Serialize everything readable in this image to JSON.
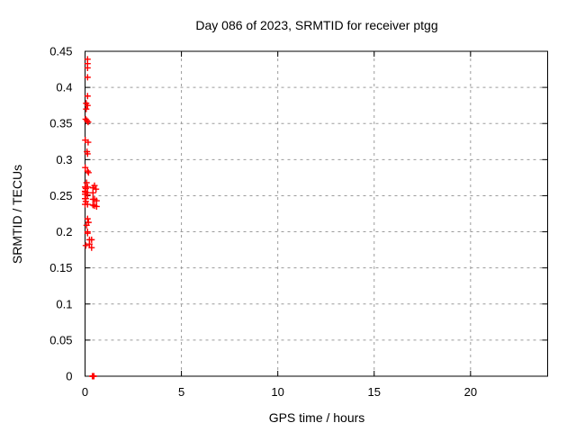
{
  "page": {
    "background": "#ffffff"
  },
  "chart_data": {
    "type": "scatter",
    "title": "Day 086 of 2023, SRMTID for receiver ptgg",
    "xlabel": "GPS time / hours",
    "ylabel": "SRMTID / TECUs",
    "xlim": [
      0,
      24
    ],
    "ylim": [
      0,
      0.45
    ],
    "xticks": {
      "values": [
        0,
        5,
        10,
        15,
        20
      ],
      "labels": [
        "0",
        "5",
        "10",
        "15",
        "20"
      ]
    },
    "yticks": {
      "values": [
        0,
        0.05,
        0.1,
        0.15,
        0.2,
        0.25,
        0.3,
        0.35,
        0.4,
        0.45
      ],
      "labels": [
        "0",
        "0.05",
        "0.1",
        "0.15",
        "0.2",
        "0.25",
        "0.3",
        "0.35",
        "0.4",
        "0.45"
      ]
    },
    "grid": {
      "visible": true,
      "style": "dashed",
      "color": "#9b9b9b"
    },
    "legend": "none",
    "border_color": "#000000",
    "series": [
      {
        "name": "SRMTID",
        "marker": "plus",
        "color": "#ff0000",
        "points": [
          [
            0.13,
            0.439
          ],
          [
            0.13,
            0.433
          ],
          [
            0.13,
            0.427
          ],
          [
            0.13,
            0.414
          ],
          [
            0.13,
            0.388
          ],
          [
            0.06,
            0.378
          ],
          [
            0.13,
            0.375
          ],
          [
            0.06,
            0.37
          ],
          [
            0.03,
            0.356
          ],
          [
            0.1,
            0.354
          ],
          [
            0.16,
            0.352
          ],
          [
            0.01,
            0.327
          ],
          [
            0.16,
            0.324
          ],
          [
            0.1,
            0.311
          ],
          [
            0.13,
            0.308
          ],
          [
            0.01,
            0.289
          ],
          [
            0.13,
            0.284
          ],
          [
            0.18,
            0.282
          ],
          [
            0.08,
            0.268
          ],
          [
            0.49,
            0.264
          ],
          [
            0.0,
            0.262
          ],
          [
            0.13,
            0.262
          ],
          [
            0.41,
            0.261
          ],
          [
            0.04,
            0.26
          ],
          [
            0.57,
            0.259
          ],
          [
            0.0,
            0.256
          ],
          [
            0.02,
            0.255
          ],
          [
            0.13,
            0.254
          ],
          [
            0.41,
            0.254
          ],
          [
            0.0,
            0.252
          ],
          [
            0.13,
            0.251
          ],
          [
            0.0,
            0.246
          ],
          [
            0.04,
            0.246
          ],
          [
            0.41,
            0.245
          ],
          [
            0.49,
            0.245
          ],
          [
            0.6,
            0.243
          ],
          [
            0.04,
            0.242
          ],
          [
            0.0,
            0.238
          ],
          [
            0.13,
            0.238
          ],
          [
            0.41,
            0.237
          ],
          [
            0.49,
            0.236
          ],
          [
            0.6,
            0.235
          ],
          [
            0.13,
            0.218
          ],
          [
            0.18,
            0.213
          ],
          [
            0.08,
            0.209
          ],
          [
            0.13,
            0.2
          ],
          [
            0.13,
            0.198
          ],
          [
            0.23,
            0.189
          ],
          [
            0.34,
            0.189
          ],
          [
            0.23,
            0.183
          ],
          [
            0.04,
            0.181
          ],
          [
            0.34,
            0.178
          ],
          [
            0.38,
            0.0
          ],
          [
            0.4,
            0.0
          ],
          [
            0.42,
            0.0
          ],
          [
            0.44,
            0.0
          ],
          [
            0.46,
            0.0
          ]
        ]
      }
    ]
  }
}
